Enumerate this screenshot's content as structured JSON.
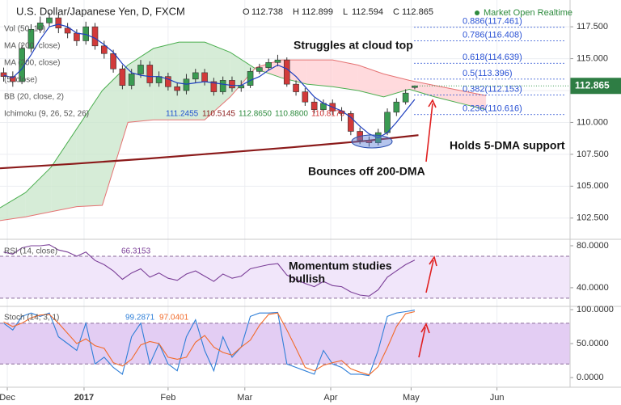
{
  "chart_data": [
    {
      "type": "candlestick",
      "title": "U.S. Dollar/Japanese Yen, D, FXCM",
      "ohlc_labels": [
        "O",
        "H",
        "L",
        "C"
      ],
      "ohlc_values": [
        112.738,
        112.899,
        112.594,
        112.865
      ],
      "status": "Market Open Realtime",
      "studies": [
        "Vol (50, 10)",
        "MA (200, close)",
        "MA (200, close)",
        "(5, close)",
        "BB (20, close, 2)",
        "Ichimoku (9, 26, 52, 26)"
      ],
      "ichimoku_values": [
        "111.2455",
        "110.5145",
        "112.8650",
        "110.8800",
        "110.8178"
      ],
      "ichimoku_colors": [
        "#1e50d0",
        "#8b1a1a",
        "#2e8b3e",
        "#2e8b3e",
        "#d03030"
      ],
      "xlim": [
        0,
        156
      ],
      "xticks": [
        {
          "value": 2,
          "label": "Dec"
        },
        {
          "value": 23,
          "label": "2017"
        },
        {
          "value": 46,
          "label": "Feb"
        },
        {
          "value": 67,
          "label": "Mar"
        },
        {
          "value": 90.5,
          "label": "Apr"
        },
        {
          "value": 112.5,
          "label": "May"
        },
        {
          "value": 136,
          "label": "Jun"
        }
      ],
      "ylim": [
        100.9,
        119.6
      ],
      "yticks": [
        {
          "value": 102.5,
          "label": "102.500"
        },
        {
          "value": 105,
          "label": "105.000"
        },
        {
          "value": 107.5,
          "label": "107.500"
        },
        {
          "value": 110,
          "label": "110.000"
        },
        {
          "value": 112.5,
          "label": "112.500"
        },
        {
          "value": 115,
          "label": "115.000"
        },
        {
          "value": 117.5,
          "label": "117.500"
        }
      ],
      "grid": true,
      "up_color": "#3a9b52",
      "down_color": "#d23a3a",
      "x": [
        1,
        3.5,
        6,
        8.5,
        11,
        13.5,
        16,
        18.5,
        21,
        23.5,
        26,
        28.5,
        31,
        33.5,
        36,
        38.5,
        41,
        43.5,
        46,
        48.5,
        51,
        53.5,
        56,
        58.5,
        61,
        63.5,
        66,
        68.5,
        71,
        73.5,
        76,
        78.5,
        81,
        83.5,
        86,
        88.5,
        91,
        93.5,
        96,
        98.5,
        101,
        103.5,
        106,
        108.5,
        111,
        113.5
      ],
      "open": [
        113.9,
        113.6,
        113.2,
        115.8,
        117.3,
        117.8,
        118.2,
        117.4,
        117.0,
        116.4,
        117.5,
        116.0,
        115.4,
        114.2,
        112.9,
        113.8,
        114.5,
        113.1,
        113.6,
        112.8,
        112.5,
        113.4,
        113.9,
        113.2,
        112.4,
        113.3,
        112.7,
        112.9,
        114.0,
        114.3,
        114.7,
        114.9,
        113.0,
        112.4,
        111.6,
        111.0,
        111.5,
        110.9,
        110.7,
        109.3,
        108.6,
        108.4,
        109.2,
        110.8,
        111.6,
        112.738
      ],
      "high": [
        114.3,
        114.0,
        116.1,
        117.7,
        118.3,
        118.6,
        118.5,
        117.8,
        117.3,
        117.9,
        117.8,
        116.4,
        115.7,
        114.5,
        114.2,
        114.9,
        114.8,
        114.0,
        113.9,
        113.1,
        113.8,
        114.2,
        114.2,
        113.5,
        113.6,
        113.6,
        113.3,
        114.3,
        114.6,
        115.0,
        115.3,
        115.1,
        113.3,
        112.7,
        111.9,
        111.8,
        111.8,
        111.2,
        110.9,
        109.6,
        108.9,
        109.5,
        111.1,
        111.9,
        112.6,
        112.899
      ],
      "low": [
        113.2,
        112.8,
        113.0,
        115.5,
        117.0,
        117.5,
        117.0,
        116.6,
        116.0,
        116.1,
        115.7,
        115.0,
        113.9,
        112.6,
        112.6,
        113.5,
        112.8,
        112.8,
        112.5,
        112.1,
        112.2,
        113.1,
        112.9,
        112.1,
        112.2,
        112.4,
        112.4,
        112.7,
        113.8,
        114.1,
        114.4,
        112.8,
        112.1,
        111.3,
        110.7,
        110.6,
        110.6,
        110.1,
        109.0,
        108.3,
        108.1,
        108.2,
        109.0,
        110.5,
        111.4,
        112.594
      ],
      "close": [
        113.6,
        113.2,
        115.8,
        117.3,
        117.8,
        118.2,
        117.4,
        117.0,
        116.4,
        117.5,
        116.0,
        115.4,
        114.2,
        112.9,
        113.8,
        114.5,
        113.1,
        113.6,
        112.8,
        112.5,
        113.4,
        113.9,
        113.2,
        112.4,
        113.3,
        112.7,
        112.9,
        114.0,
        114.3,
        114.7,
        114.9,
        113.0,
        112.4,
        111.6,
        111.0,
        111.5,
        110.9,
        110.7,
        109.3,
        108.6,
        108.4,
        109.2,
        110.8,
        111.6,
        112.3,
        112.865
      ],
      "overlays": [
        {
          "color": "#1e3fbf",
          "width": 1.2,
          "x": [
            1,
            3.5,
            6,
            8.5,
            11,
            13.5,
            16,
            18.5,
            21,
            23.5,
            26,
            28.5,
            31,
            33.5,
            36,
            38.5,
            41,
            43.5,
            46,
            48.5,
            51,
            53.5,
            56,
            58.5,
            61,
            63.5,
            66,
            68.5,
            71,
            73.5,
            76,
            78.5,
            81,
            83.5,
            86,
            88.5,
            91,
            93.5,
            96,
            98.5,
            101,
            103.5,
            106,
            108.5,
            111,
            113.5
          ],
          "values": [
            113.7,
            113.5,
            114.2,
            115.3,
            116.5,
            117.5,
            117.7,
            117.5,
            117.0,
            116.9,
            116.6,
            116.1,
            115.5,
            114.6,
            113.9,
            113.7,
            113.6,
            113.6,
            113.4,
            113.1,
            113.0,
            113.1,
            113.2,
            113.1,
            113.0,
            112.9,
            112.9,
            113.3,
            113.6,
            114.1,
            114.5,
            114.2,
            113.6,
            112.8,
            112.0,
            111.5,
            111.2,
            110.9,
            110.4,
            109.7,
            109.1,
            108.8,
            109.2,
            110.0,
            110.9,
            111.8
          ]
        },
        {
          "color": "#8b1a1a",
          "width": 2.2,
          "x": [
            0,
            20,
            40,
            60,
            80,
            100,
            114.5
          ],
          "values": [
            106.4,
            106.75,
            107.15,
            107.6,
            108.05,
            108.55,
            109.0
          ]
        }
      ],
      "cloud": {
        "x": [
          0,
          7,
          14,
          21,
          28,
          35,
          42,
          49,
          56,
          63,
          70,
          77,
          84,
          91,
          98,
          105,
          112,
          119,
          126,
          133
        ],
        "span_a": [
          103.3,
          104.5,
          106.5,
          109.5,
          112.5,
          114.5,
          115.8,
          116.3,
          116.3,
          115.5,
          114.2,
          113.5,
          113.0,
          112.8,
          112.5,
          112.0,
          112.6,
          112.0,
          111.5,
          111.0
        ],
        "span_b": [
          102.3,
          102.6,
          103.0,
          103.4,
          103.5,
          110.0,
          110.2,
          110.2,
          110.2,
          112.0,
          114.3,
          114.9,
          114.9,
          114.9,
          114.5,
          113.8,
          113.3,
          112.9,
          112.5,
          112.1
        ],
        "colors": [
          "#4caf50",
          "#e57373"
        ],
        "fill_colors": [
          "#c8e6c9",
          "#ffcdd2"
        ]
      },
      "fib": {
        "labels": [
          "0.886(117.461)",
          "0.786(116.408)",
          "0.618(114.639)",
          "0.5(113.396)",
          "0.382(112.153)",
          "0.236(110.616)"
        ],
        "values": [
          117.461,
          116.408,
          114.639,
          113.396,
          112.153,
          110.616
        ],
        "color": "#2a52d4"
      },
      "annotations": [
        "Struggles at cloud top",
        "Holds 5-DMA support",
        "Bounces off 200-DMA"
      ]
    },
    {
      "type": "line",
      "title": "RSI (14, close)",
      "annotations": [
        "Momentum studies",
        "bullish"
      ],
      "xlim": [
        0,
        156
      ],
      "x": [
        1,
        3.5,
        6,
        8.5,
        11,
        13.5,
        16,
        18.5,
        21,
        23.5,
        26,
        28.5,
        31,
        33.5,
        36,
        38.5,
        41,
        43.5,
        46,
        48.5,
        51,
        53.5,
        56,
        58.5,
        61,
        63.5,
        66,
        68.5,
        71,
        73.5,
        76,
        78.5,
        81,
        83.5,
        86,
        88.5,
        91,
        93.5,
        96,
        98.5,
        101,
        103.5,
        106,
        108.5,
        111,
        113.5
      ],
      "series": [
        {
          "color": "#7b3f98",
          "values": [
            74,
            72,
            78,
            80,
            80,
            81,
            76,
            74,
            70,
            74,
            66,
            62,
            56,
            48,
            54,
            58,
            50,
            54,
            49,
            47,
            53,
            56,
            51,
            46,
            53,
            49,
            51,
            58,
            60,
            62,
            63,
            52,
            48,
            44,
            41,
            46,
            42,
            41,
            36,
            33,
            32,
            38,
            50,
            56,
            62,
            66.3153
          ]
        }
      ],
      "ylim": [
        23,
        84.6
      ],
      "yticks": [
        {
          "value": 40,
          "label": "40.0000"
        },
        {
          "value": 80,
          "label": "80.0000"
        }
      ],
      "levels": [
        30,
        70
      ],
      "band_color": "#f1e6fa"
    },
    {
      "type": "line",
      "title": "Stoch (14, 3, 1)",
      "xlim": [
        0,
        156
      ],
      "x": [
        1,
        3.5,
        6,
        8.5,
        11,
        13.5,
        16,
        18.5,
        21,
        23.5,
        26,
        28.5,
        31,
        33.5,
        36,
        38.5,
        41,
        43.5,
        46,
        48.5,
        51,
        53.5,
        56,
        58.5,
        61,
        63.5,
        66,
        68.5,
        71,
        73.5,
        76,
        78.5,
        81,
        83.5,
        86,
        88.5,
        91,
        93.5,
        96,
        98.5,
        101,
        103.5,
        106,
        108.5,
        111,
        113.5
      ],
      "series": [
        {
          "color": "#2f7fd8",
          "values": [
            80,
            70,
            90,
            95,
            90,
            95,
            60,
            50,
            40,
            80,
            20,
            30,
            15,
            5,
            60,
            80,
            20,
            50,
            20,
            10,
            60,
            85,
            40,
            10,
            60,
            30,
            45,
            90,
            95,
            95,
            96,
            20,
            15,
            10,
            5,
            40,
            20,
            15,
            5,
            5,
            3,
            40,
            90,
            95,
            97,
            99.2871
          ]
        },
        {
          "color": "#f26b2a",
          "values": [
            82,
            75,
            80,
            88,
            92,
            93,
            80,
            65,
            50,
            57,
            47,
            43,
            22,
            17,
            27,
            48,
            53,
            50,
            30,
            27,
            30,
            52,
            62,
            45,
            37,
            33,
            45,
            55,
            77,
            93,
            95,
            70,
            43,
            15,
            10,
            18,
            22,
            25,
            13,
            8,
            4,
            16,
            44,
            75,
            94,
            97.0401
          ]
        }
      ],
      "ylim": [
        -13,
        103.6
      ],
      "yticks": [
        {
          "value": 0,
          "label": "0.0000"
        },
        {
          "value": 50,
          "label": "50.0000"
        },
        {
          "value": 100,
          "label": "100.0000"
        }
      ],
      "levels": [
        20,
        80
      ],
      "band_color": "#e3cdf3"
    }
  ]
}
